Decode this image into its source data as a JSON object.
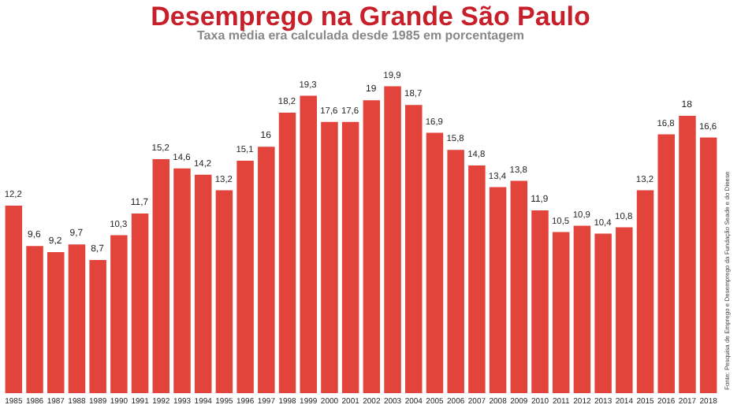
{
  "chart_data": {
    "type": "bar",
    "title": "Desemprego na Grande São Paulo",
    "subtitle": "Taxa média era calculada desde 1985 em porcentagem",
    "categories": [
      "1985",
      "1986",
      "1987",
      "1988",
      "1989",
      "1990",
      "1991",
      "1992",
      "1993",
      "1994",
      "1995",
      "1996",
      "1997",
      "1998",
      "1999",
      "2000",
      "2001",
      "2002",
      "2003",
      "2004",
      "2005",
      "2006",
      "2007",
      "2008",
      "2009",
      "2010",
      "2011",
      "2012",
      "2013",
      "2014",
      "2015",
      "2016",
      "2017",
      "2018"
    ],
    "values": [
      12.2,
      9.6,
      9.2,
      9.7,
      8.7,
      10.3,
      11.7,
      15.2,
      14.6,
      14.2,
      13.2,
      15.1,
      16,
      18.2,
      19.3,
      17.6,
      17.6,
      19,
      19.9,
      18.7,
      16.9,
      15.8,
      14.8,
      13.4,
      13.8,
      11.9,
      10.5,
      10.9,
      10.4,
      10.8,
      13.2,
      16.8,
      18,
      16.6
    ],
    "value_labels": [
      "12,2",
      "9,6",
      "9,2",
      "9,7",
      "8,7",
      "10,3",
      "11,7",
      "15,2",
      "14,6",
      "14,2",
      "13,2",
      "15,1",
      "16",
      "18,2",
      "19,3",
      "17,6",
      "17,6",
      "19",
      "19,9",
      "18,7",
      "16,9",
      "15,8",
      "14,8",
      "13,4",
      "13,8",
      "11,9",
      "10,5",
      "10,9",
      "10,4",
      "10,8",
      "13,2",
      "16,8",
      "18",
      "16,6"
    ],
    "color": "#e2443c",
    "annotations": [
      "Fonte: Pesquisa de Emprego e Desemprego da Fundação Seade e do Dieese"
    ],
    "legend": false
  }
}
